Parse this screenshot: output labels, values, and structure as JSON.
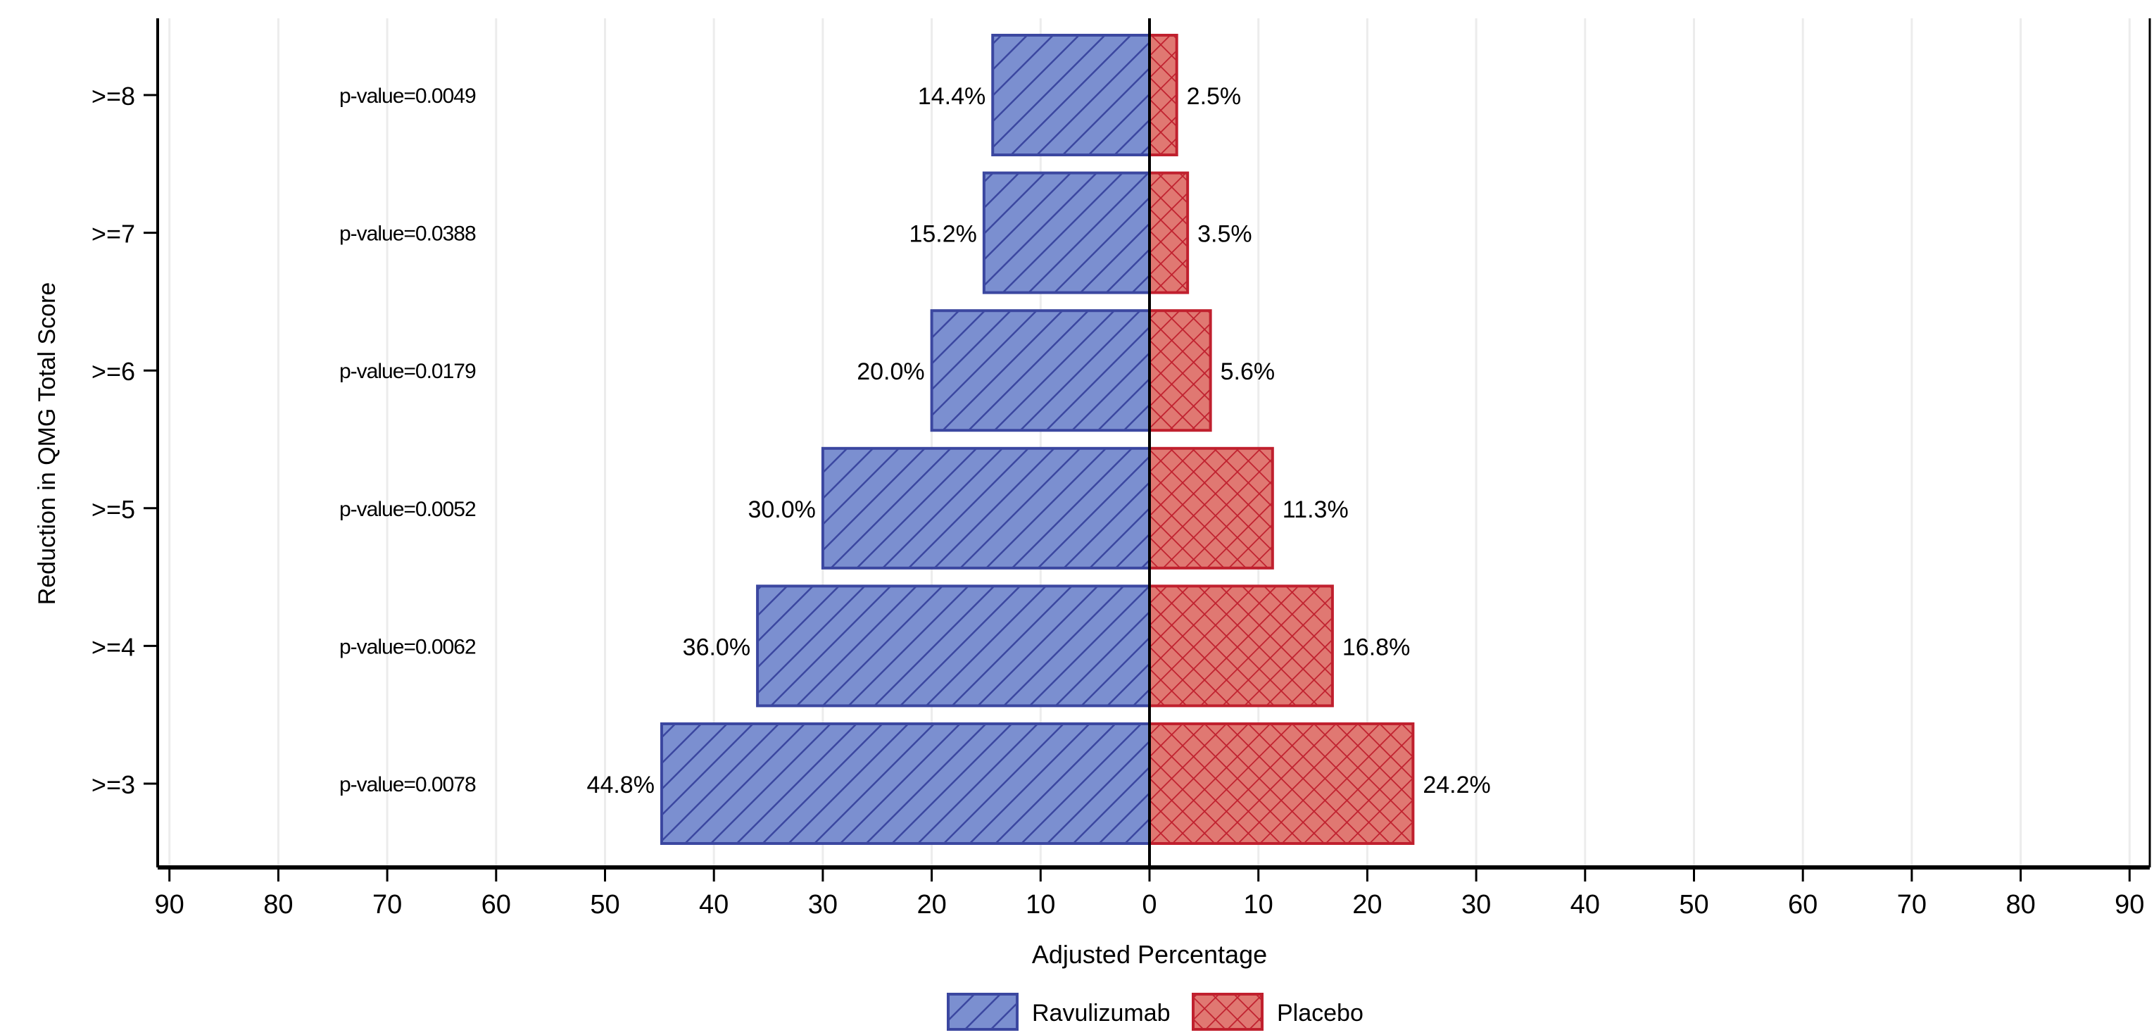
{
  "chart_data": {
    "type": "bar",
    "orientation": "horizontal-butterfly",
    "categories": [
      ">=8",
      ">=7",
      ">=6",
      ">=5",
      ">=4",
      ">=3"
    ],
    "series": [
      {
        "name": "Ravulizumab",
        "side": "left",
        "values": [
          14.4,
          15.2,
          20.0,
          30.0,
          36.0,
          44.8
        ],
        "labels": [
          "14.4%",
          "15.2%",
          "20.0%",
          "30.0%",
          "36.0%",
          "44.8%"
        ],
        "color": "#7b8fd0",
        "stroke": "#3b47a0",
        "pattern": "diagonal-hatch"
      },
      {
        "name": "Placebo",
        "side": "right",
        "values": [
          2.5,
          3.5,
          5.6,
          11.3,
          16.8,
          24.2
        ],
        "labels": [
          "2.5%",
          "3.5%",
          "5.6%",
          "11.3%",
          "16.8%",
          "24.2%"
        ],
        "color": "#e07872",
        "stroke": "#c0202e",
        "pattern": "cross-hatch"
      }
    ],
    "annotations": [
      "p-value=0.0049",
      "p-value=0.0388",
      "p-value=0.0179",
      "p-value=0.0052",
      "p-value=0.0062",
      "p-value=0.0078"
    ],
    "xlabel": "Adjusted Percentage",
    "ylabel": "Reduction in QMG Total Score",
    "xlim": [
      -90,
      90
    ],
    "xticks": [
      "90",
      "80",
      "70",
      "60",
      "50",
      "40",
      "30",
      "20",
      "10",
      "0",
      "10",
      "20",
      "30",
      "40",
      "50",
      "60",
      "70",
      "80",
      "90"
    ],
    "grid": "vertical",
    "legend": "bottom-center"
  }
}
